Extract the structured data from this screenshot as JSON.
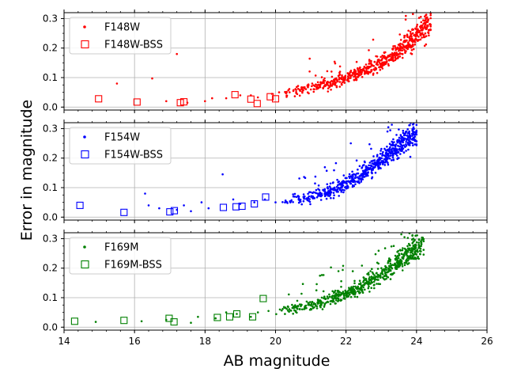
{
  "figure": {
    "xlabel": "AB magnitude",
    "ylabel": "Error in magnitude"
  },
  "chart_data": [
    {
      "type": "scatter",
      "xlim": [
        14,
        26
      ],
      "ylim": [
        -0.01,
        0.32
      ],
      "xticks": [
        14,
        16,
        18,
        20,
        22,
        24,
        26
      ],
      "yticks": [
        0.0,
        0.1,
        0.2,
        0.3
      ],
      "grid": true,
      "legend": "top-left",
      "series": [
        {
          "name": "F148W",
          "marker": "dot",
          "color": "#ff0000",
          "points": [
            [
              13.9,
              0.006
            ],
            [
              15.5,
              0.08
            ],
            [
              16.5,
              0.097
            ],
            [
              16.9,
              0.02
            ],
            [
              17.2,
              0.18
            ],
            [
              17.5,
              0.015
            ],
            [
              18,
              0.02
            ],
            [
              18.2,
              0.03
            ],
            [
              18.6,
              0.03
            ],
            [
              19,
              0.04
            ],
            [
              19.3,
              0.04
            ],
            [
              19.5,
              0.033
            ],
            [
              19.9,
              0.045
            ],
            [
              20.1,
              0.05
            ],
            [
              20.4,
              0.05
            ]
          ],
          "trend": [
            [
              20.2,
              0.045
            ],
            [
              20.8,
              0.06
            ],
            [
              21.2,
              0.07
            ],
            [
              21.6,
              0.085
            ],
            [
              22,
              0.1
            ],
            [
              22.4,
              0.115
            ],
            [
              22.8,
              0.14
            ],
            [
              23.2,
              0.165
            ],
            [
              23.6,
              0.2
            ],
            [
              24,
              0.245
            ],
            [
              24.4,
              0.29
            ]
          ],
          "count": 650
        },
        {
          "name": "F148W-BSS",
          "marker": "square",
          "color": "#ff0000",
          "points": [
            [
              14.98,
              0.028
            ],
            [
              16.07,
              0.017
            ],
            [
              17.3,
              0.015
            ],
            [
              17.4,
              0.018
            ],
            [
              18.85,
              0.042
            ],
            [
              19.3,
              0.027
            ],
            [
              19.48,
              0.012
            ],
            [
              19.85,
              0.035
            ],
            [
              20.0,
              0.028
            ]
          ]
        }
      ]
    },
    {
      "type": "scatter",
      "xlim": [
        14,
        26
      ],
      "ylim": [
        -0.01,
        0.32
      ],
      "xticks": [
        14,
        16,
        18,
        20,
        22,
        24,
        26
      ],
      "yticks": [
        0.0,
        0.1,
        0.2,
        0.3
      ],
      "grid": true,
      "legend": "top-left",
      "series": [
        {
          "name": "F154W",
          "marker": "dot",
          "color": "#0000ff",
          "points": [
            [
              16.3,
              0.08
            ],
            [
              16.4,
              0.04
            ],
            [
              16.7,
              0.03
            ],
            [
              17.2,
              0.025
            ],
            [
              17.4,
              0.04
            ],
            [
              17.6,
              0.02
            ],
            [
              17.9,
              0.05
            ],
            [
              18.1,
              0.03
            ],
            [
              18.5,
              0.145
            ],
            [
              18.8,
              0.06
            ],
            [
              19,
              0.045
            ],
            [
              19.4,
              0.05
            ],
            [
              19.7,
              0.06
            ],
            [
              20.0,
              0.05
            ]
          ],
          "trend": [
            [
              20.2,
              0.05
            ],
            [
              20.8,
              0.065
            ],
            [
              21.2,
              0.075
            ],
            [
              21.6,
              0.09
            ],
            [
              22,
              0.115
            ],
            [
              22.4,
              0.14
            ],
            [
              22.8,
              0.175
            ],
            [
              23.2,
              0.215
            ],
            [
              23.6,
              0.25
            ],
            [
              24,
              0.28
            ]
          ],
          "count": 650
        },
        {
          "name": "F154W-BSS",
          "marker": "square",
          "color": "#0000ff",
          "points": [
            [
              14.45,
              0.04
            ],
            [
              15.7,
              0.016
            ],
            [
              17.0,
              0.018
            ],
            [
              17.13,
              0.022
            ],
            [
              18.52,
              0.033
            ],
            [
              18.88,
              0.035
            ],
            [
              19.05,
              0.037
            ],
            [
              19.4,
              0.045
            ],
            [
              19.72,
              0.068
            ]
          ]
        }
      ]
    },
    {
      "type": "scatter",
      "xlim": [
        14,
        26
      ],
      "ylim": [
        -0.01,
        0.32
      ],
      "xticks": [
        14,
        16,
        18,
        20,
        22,
        24,
        26
      ],
      "yticks": [
        0.0,
        0.1,
        0.2,
        0.3
      ],
      "grid": true,
      "legend": "top-left",
      "series": [
        {
          "name": "F169M",
          "marker": "dot",
          "color": "#008000",
          "points": [
            [
              14.9,
              0.018
            ],
            [
              16.2,
              0.02
            ],
            [
              16.9,
              0.025
            ],
            [
              17.6,
              0.015
            ],
            [
              17.8,
              0.035
            ],
            [
              18.3,
              0.03
            ],
            [
              18.6,
              0.05
            ],
            [
              18.9,
              0.045
            ],
            [
              19.3,
              0.035
            ],
            [
              19.5,
              0.05
            ],
            [
              19.8,
              0.055
            ]
          ],
          "trend": [
            [
              20,
              0.05
            ],
            [
              20.6,
              0.065
            ],
            [
              21,
              0.075
            ],
            [
              21.4,
              0.09
            ],
            [
              21.8,
              0.105
            ],
            [
              22.2,
              0.125
            ],
            [
              22.6,
              0.15
            ],
            [
              23,
              0.18
            ],
            [
              23.4,
              0.215
            ],
            [
              23.8,
              0.25
            ],
            [
              24.2,
              0.28
            ]
          ],
          "count": 650
        },
        {
          "name": "F169M-BSS",
          "marker": "square",
          "color": "#008000",
          "points": [
            [
              14.3,
              0.02
            ],
            [
              15.7,
              0.023
            ],
            [
              16.98,
              0.03
            ],
            [
              17.12,
              0.018
            ],
            [
              18.35,
              0.033
            ],
            [
              18.7,
              0.035
            ],
            [
              18.9,
              0.045
            ],
            [
              19.35,
              0.035
            ],
            [
              19.65,
              0.097
            ]
          ]
        }
      ]
    }
  ]
}
